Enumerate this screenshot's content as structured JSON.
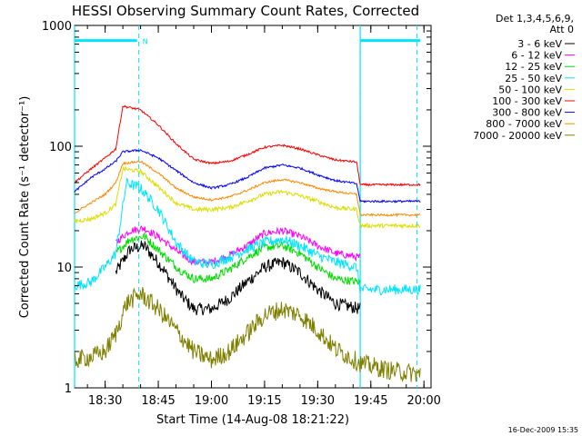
{
  "chart_data": {
    "type": "line",
    "title": "HESSI Observing Summary Count Rates, Corrected",
    "xlabel": "Start Time (14-Aug-08 18:21:22)",
    "ylabel": "Corrected Count Rate (s⁻¹ detector⁻¹)",
    "yscale": "log",
    "ylim": [
      1,
      1000
    ],
    "xlim": [
      "18:21:22",
      "20:02:00"
    ],
    "x_ticks": [
      "18:30",
      "18:45",
      "19:00",
      "19:15",
      "19:30",
      "19:45",
      "20:00"
    ],
    "y_ticks": [
      {
        "v": 1,
        "label": "1"
      },
      {
        "v": 10,
        "label": "10"
      },
      {
        "v": 100,
        "label": "100"
      },
      {
        "v": 1000,
        "label": "1000"
      }
    ],
    "legend_title_lines": [
      "Det 1,3,4,5,6,9,",
      "Att 0"
    ],
    "legend_position": "right",
    "footer_date": "16-Dec-2009 15:35",
    "markers": {
      "night_label": "N",
      "vlines": [
        "18:39:30",
        "19:42:00",
        "19:58:00"
      ],
      "cyan_lines": [
        "18:21:22",
        "19:42:00"
      ],
      "bars": [
        {
          "start": "18:21:22",
          "end": "18:39:00",
          "value": 750
        },
        {
          "start": "19:42:00",
          "end": "19:59:00",
          "value": 750
        }
      ]
    },
    "series": [
      {
        "name": "3 - 6 keV",
        "color": "#000000",
        "start": "18:33:00",
        "end": "19:42:00",
        "noise": 0.12,
        "points": [
          [
            "18:33:00",
            9
          ],
          [
            "18:37:00",
            14
          ],
          [
            "18:41:00",
            15
          ],
          [
            "18:46:00",
            10
          ],
          [
            "18:51:00",
            6
          ],
          [
            "18:55:00",
            4.5
          ],
          [
            "19:00:00",
            4.5
          ],
          [
            "19:05:00",
            5.5
          ],
          [
            "19:10:00",
            7.5
          ],
          [
            "19:15:00",
            10
          ],
          [
            "19:20:00",
            11
          ],
          [
            "19:25:00",
            9
          ],
          [
            "19:30:00",
            6.5
          ],
          [
            "19:35:00",
            5
          ],
          [
            "19:42:00",
            4.5
          ]
        ]
      },
      {
        "name": "6 - 12 keV",
        "color": "#ff00ff",
        "start": "18:33:00",
        "end": "19:42:00",
        "noise": 0.07,
        "points": [
          [
            "18:33:00",
            16
          ],
          [
            "18:37:00",
            20
          ],
          [
            "18:41:00",
            21
          ],
          [
            "18:46:00",
            17
          ],
          [
            "18:51:00",
            13
          ],
          [
            "18:55:00",
            11
          ],
          [
            "19:00:00",
            11
          ],
          [
            "19:05:00",
            12.5
          ],
          [
            "19:10:00",
            15
          ],
          [
            "19:15:00",
            19
          ],
          [
            "19:20:00",
            20
          ],
          [
            "19:25:00",
            18
          ],
          [
            "19:30:00",
            15
          ],
          [
            "19:35:00",
            13
          ],
          [
            "19:42:00",
            12
          ]
        ]
      },
      {
        "name": "12 - 25 keV",
        "color": "#00dd00",
        "start": "18:33:00",
        "end": "19:42:00",
        "noise": 0.08,
        "points": [
          [
            "18:33:00",
            13
          ],
          [
            "18:37:00",
            17
          ],
          [
            "18:41:00",
            18
          ],
          [
            "18:46:00",
            13
          ],
          [
            "18:51:00",
            9.5
          ],
          [
            "18:55:00",
            8
          ],
          [
            "19:00:00",
            8
          ],
          [
            "19:05:00",
            9.5
          ],
          [
            "19:10:00",
            12
          ],
          [
            "19:15:00",
            14.5
          ],
          [
            "19:20:00",
            15
          ],
          [
            "19:25:00",
            13
          ],
          [
            "19:30:00",
            10
          ],
          [
            "19:35:00",
            8
          ],
          [
            "19:42:00",
            7.5
          ]
        ]
      },
      {
        "name": "25 - 50 keV",
        "color": "#00e5ff",
        "start": "18:21:22",
        "end": "19:59:00",
        "noise": 0.1,
        "points": [
          [
            "18:21:22",
            7
          ],
          [
            "18:26:00",
            7.5
          ],
          [
            "18:30:00",
            10
          ],
          [
            "18:33:00",
            13
          ],
          [
            "18:36:00",
            50
          ],
          [
            "18:40:00",
            45
          ],
          [
            "18:45:00",
            30
          ],
          [
            "18:50:00",
            16
          ],
          [
            "18:55:00",
            11
          ],
          [
            "19:00:00",
            10.5
          ],
          [
            "19:05:00",
            12
          ],
          [
            "19:10:00",
            14
          ],
          [
            "19:15:00",
            16
          ],
          [
            "19:20:00",
            17
          ],
          [
            "19:25:00",
            15
          ],
          [
            "19:30:00",
            12.5
          ],
          [
            "19:35:00",
            11
          ],
          [
            "19:41:00",
            10
          ],
          [
            "19:42:00",
            6.5
          ],
          [
            "19:59:00",
            6.5
          ]
        ]
      },
      {
        "name": "50 - 100 keV",
        "color": "#dddd00",
        "start": "18:21:22",
        "end": "19:59:00",
        "noise": 0.04,
        "points": [
          [
            "18:21:22",
            24
          ],
          [
            "18:26:00",
            25
          ],
          [
            "18:30:00",
            28
          ],
          [
            "18:33:00",
            33
          ],
          [
            "18:35:00",
            65
          ],
          [
            "18:40:00",
            62
          ],
          [
            "18:45:00",
            46
          ],
          [
            "18:50:00",
            34
          ],
          [
            "18:55:00",
            30
          ],
          [
            "19:00:00",
            30
          ],
          [
            "19:05:00",
            31
          ],
          [
            "19:10:00",
            35
          ],
          [
            "19:15:00",
            40
          ],
          [
            "19:20:00",
            42
          ],
          [
            "19:25:00",
            39
          ],
          [
            "19:30:00",
            35
          ],
          [
            "19:35:00",
            31
          ],
          [
            "19:41:00",
            30
          ],
          [
            "19:42:00",
            22
          ],
          [
            "19:59:00",
            22
          ]
        ]
      },
      {
        "name": "100 - 300 keV",
        "color": "#ff0000",
        "start": "18:21:22",
        "end": "19:59:00",
        "noise": 0.02,
        "points": [
          [
            "18:21:22",
            50
          ],
          [
            "18:26:00",
            65
          ],
          [
            "18:30:00",
            80
          ],
          [
            "18:33:00",
            95
          ],
          [
            "18:35:00",
            215
          ],
          [
            "18:40:00",
            200
          ],
          [
            "18:45:00",
            150
          ],
          [
            "18:50:00",
            105
          ],
          [
            "18:55:00",
            78
          ],
          [
            "19:00:00",
            72
          ],
          [
            "19:05:00",
            75
          ],
          [
            "19:10:00",
            85
          ],
          [
            "19:15:00",
            98
          ],
          [
            "19:20:00",
            102
          ],
          [
            "19:25:00",
            95
          ],
          [
            "19:30:00",
            85
          ],
          [
            "19:35:00",
            77
          ],
          [
            "19:41:00",
            74
          ],
          [
            "19:42:00",
            48
          ],
          [
            "19:59:00",
            48
          ]
        ]
      },
      {
        "name": "300 - 800 keV",
        "color": "#0000ff",
        "start": "18:21:22",
        "end": "19:59:00",
        "noise": 0.02,
        "points": [
          [
            "18:21:22",
            42
          ],
          [
            "18:26:00",
            55
          ],
          [
            "18:30:00",
            65
          ],
          [
            "18:33:00",
            75
          ],
          [
            "18:35:00",
            90
          ],
          [
            "18:40:00",
            93
          ],
          [
            "18:45:00",
            80
          ],
          [
            "18:50:00",
            63
          ],
          [
            "18:55:00",
            50
          ],
          [
            "19:00:00",
            45
          ],
          [
            "19:05:00",
            48
          ],
          [
            "19:10:00",
            55
          ],
          [
            "19:15:00",
            66
          ],
          [
            "19:20:00",
            70
          ],
          [
            "19:25:00",
            66
          ],
          [
            "19:30:00",
            58
          ],
          [
            "19:35:00",
            52
          ],
          [
            "19:41:00",
            49
          ],
          [
            "19:42:00",
            35
          ],
          [
            "19:59:00",
            35
          ]
        ]
      },
      {
        "name": "800 - 7000 keV",
        "color": "#ff8800",
        "start": "18:21:22",
        "end": "19:59:00",
        "noise": 0.02,
        "points": [
          [
            "18:21:22",
            28
          ],
          [
            "18:26:00",
            34
          ],
          [
            "18:30:00",
            40
          ],
          [
            "18:33:00",
            50
          ],
          [
            "18:35:00",
            72
          ],
          [
            "18:40:00",
            75
          ],
          [
            "18:45:00",
            60
          ],
          [
            "18:50:00",
            45
          ],
          [
            "18:55:00",
            38
          ],
          [
            "19:00:00",
            36
          ],
          [
            "19:05:00",
            38
          ],
          [
            "19:10:00",
            43
          ],
          [
            "19:15:00",
            50
          ],
          [
            "19:20:00",
            53
          ],
          [
            "19:25:00",
            50
          ],
          [
            "19:30:00",
            45
          ],
          [
            "19:35:00",
            42
          ],
          [
            "19:41:00",
            40
          ],
          [
            "19:42:00",
            27
          ],
          [
            "19:59:00",
            27
          ]
        ]
      },
      {
        "name": "7000 - 20000 keV",
        "color": "#808000",
        "start": "18:21:22",
        "end": "19:59:00",
        "noise": 0.18,
        "points": [
          [
            "18:21:22",
            1.7
          ],
          [
            "18:26:00",
            1.8
          ],
          [
            "18:30:00",
            2.0
          ],
          [
            "18:33:00",
            2.8
          ],
          [
            "18:36:00",
            5
          ],
          [
            "18:40:00",
            6
          ],
          [
            "18:45:00",
            4.5
          ],
          [
            "18:50:00",
            3
          ],
          [
            "18:55:00",
            2
          ],
          [
            "19:00:00",
            1.7
          ],
          [
            "19:05:00",
            2
          ],
          [
            "19:10:00",
            2.8
          ],
          [
            "19:15:00",
            4
          ],
          [
            "19:20:00",
            4.5
          ],
          [
            "19:25:00",
            4
          ],
          [
            "19:30:00",
            3
          ],
          [
            "19:35:00",
            2.1
          ],
          [
            "19:42:00",
            1.6
          ],
          [
            "19:50:00",
            1.4
          ],
          [
            "19:59:00",
            1.3
          ]
        ]
      }
    ]
  }
}
